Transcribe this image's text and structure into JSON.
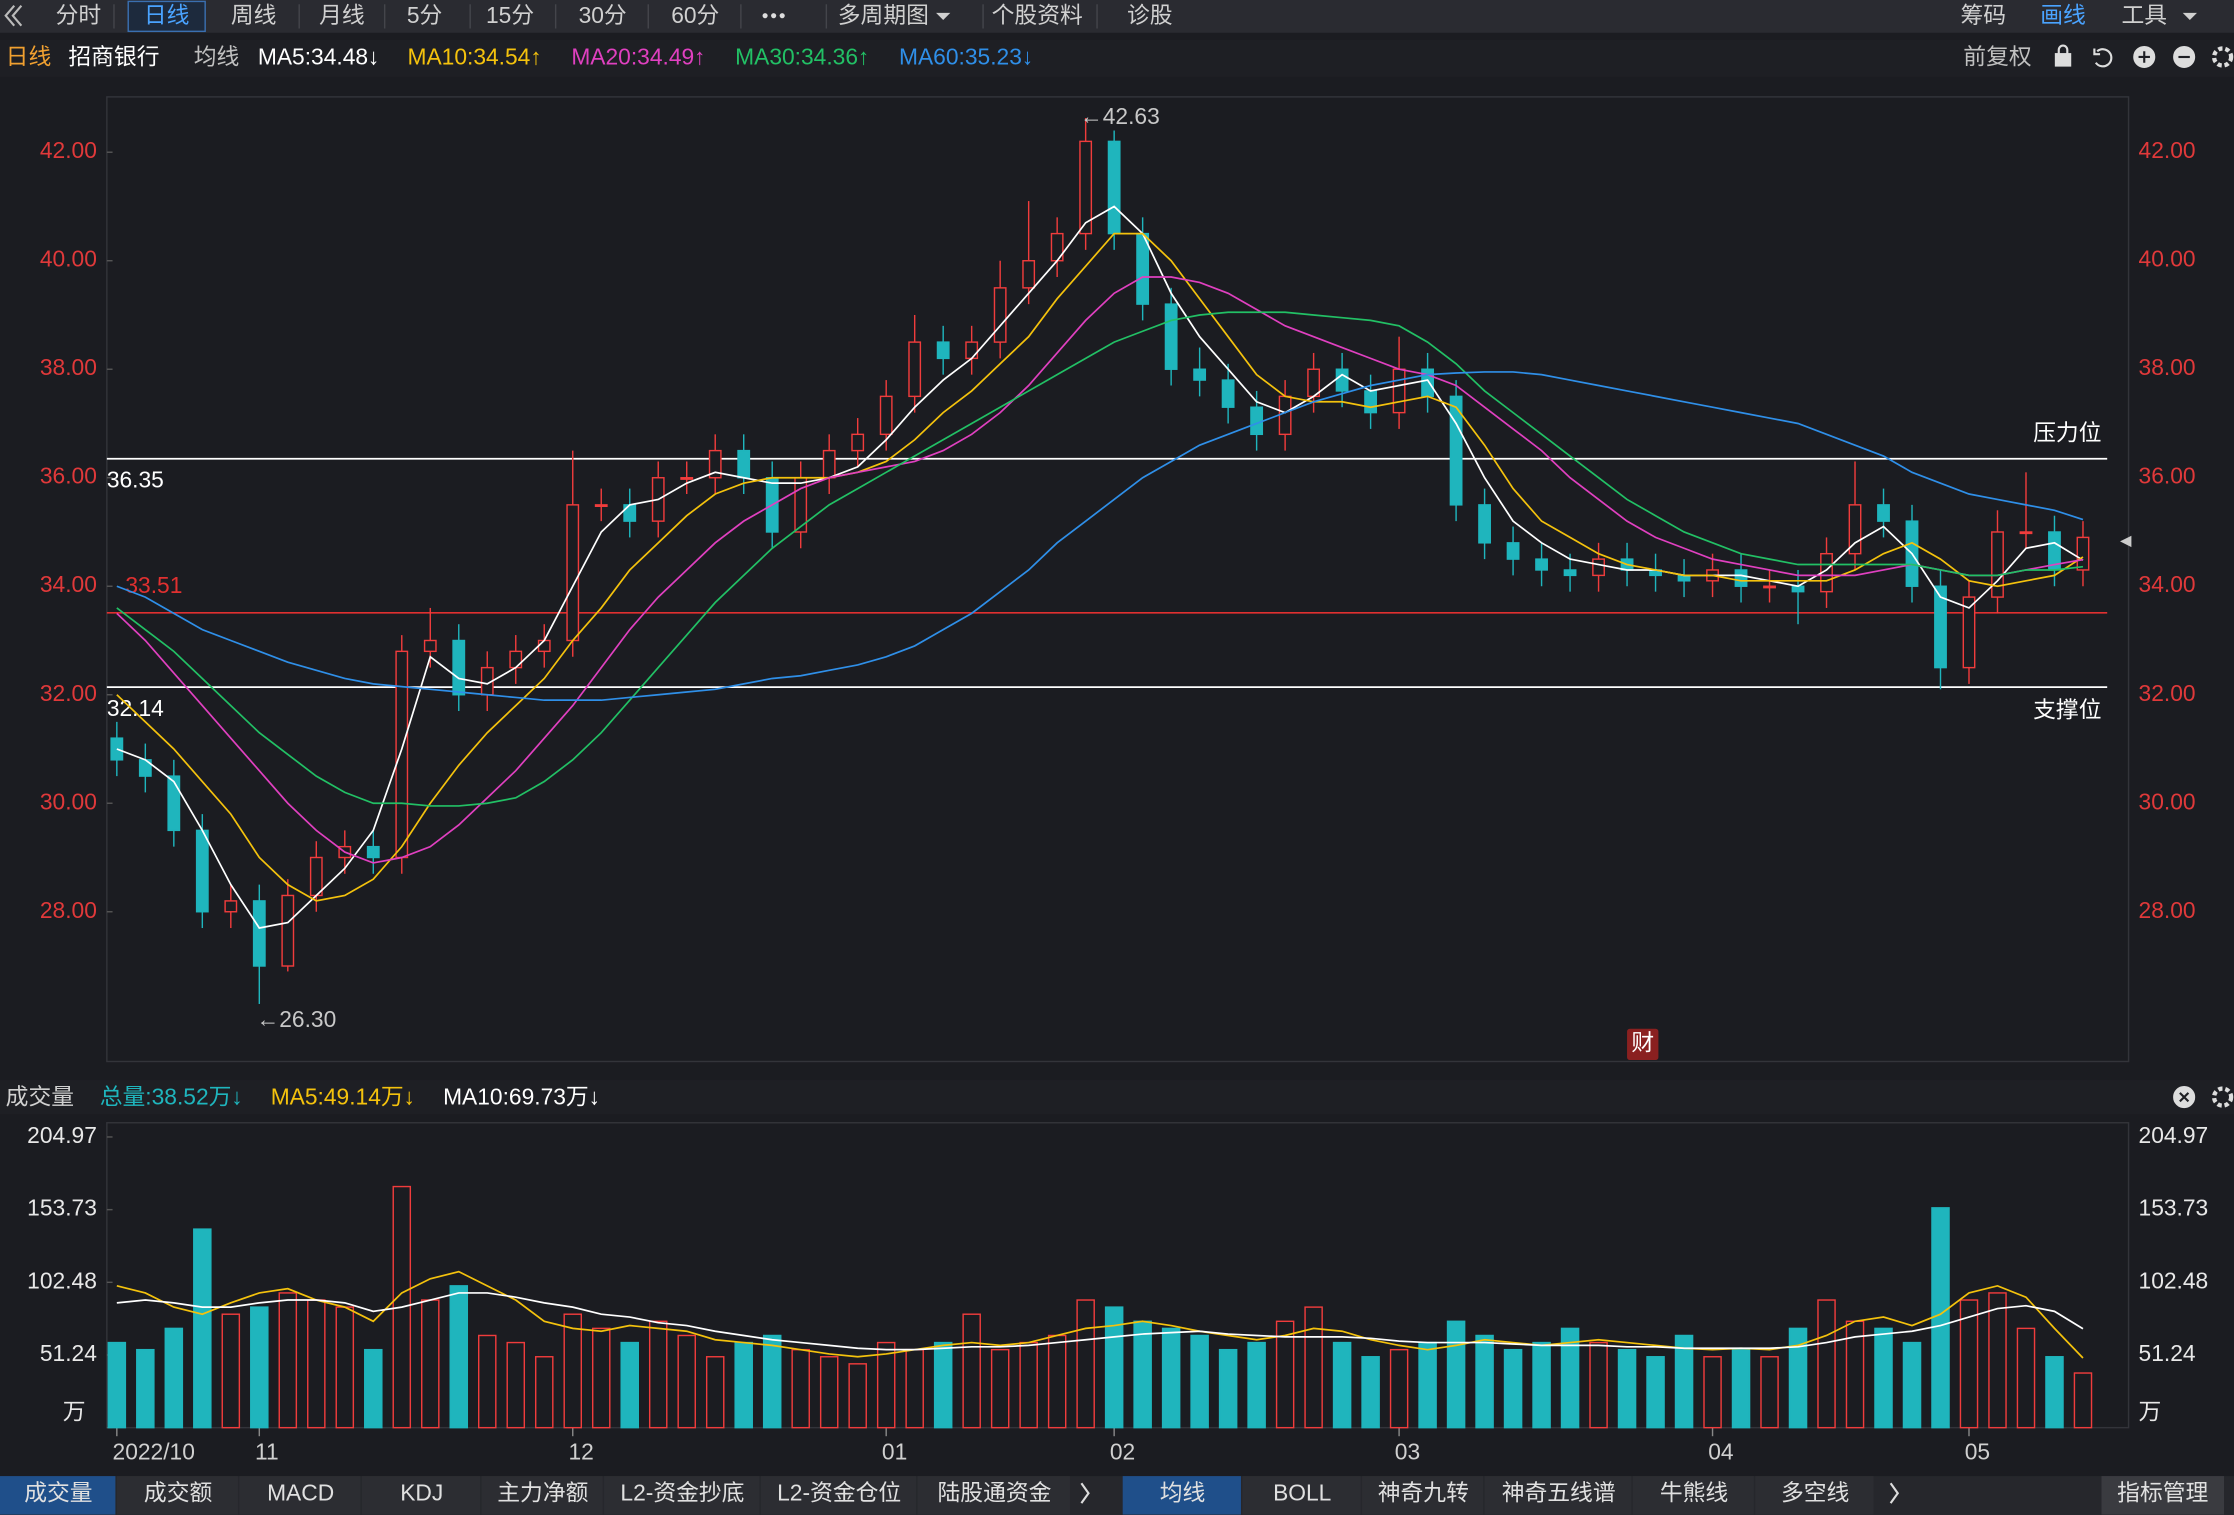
{
  "toolbar": {
    "periods": [
      "分时",
      "日线",
      "周线",
      "月线",
      "5分",
      "15分",
      "30分",
      "60分"
    ],
    "active": "日线",
    "menus": [
      "多周期图",
      "个股资料",
      "诊股"
    ],
    "right": [
      "筹码",
      "画线",
      "工具"
    ],
    "right_active": "画线"
  },
  "chart_data": [
    {
      "type": "candlestick",
      "period_label": "日线",
      "title": "招商银行",
      "ma_label": "均线",
      "adjust_label": "前复权",
      "categories": [
        "2022/10",
        null,
        null,
        null,
        null,
        "11",
        null,
        null,
        null,
        null,
        null,
        null,
        null,
        null,
        null,
        null,
        "12",
        null,
        null,
        null,
        null,
        null,
        null,
        null,
        null,
        null,
        null,
        "01",
        null,
        null,
        null,
        null,
        null,
        null,
        null,
        "02",
        null,
        null,
        null,
        null,
        null,
        null,
        null,
        null,
        null,
        "03",
        null,
        null,
        null,
        null,
        null,
        null,
        null,
        null,
        null,
        null,
        "04",
        null,
        null,
        null,
        null,
        null,
        null,
        null,
        null,
        "05",
        null,
        null,
        null,
        null
      ],
      "open": [
        31.2,
        30.8,
        30.5,
        29.5,
        28.0,
        28.2,
        27.0,
        28.3,
        29.0,
        29.2,
        29.0,
        32.8,
        33.0,
        32.0,
        32.5,
        32.8,
        33.0,
        35.5,
        35.5,
        35.2,
        36.0,
        36.0,
        36.5,
        36.0,
        35.0,
        36.0,
        36.5,
        36.8,
        37.5,
        38.5,
        38.2,
        38.5,
        39.5,
        40.0,
        40.5,
        42.2,
        40.5,
        39.2,
        38.0,
        37.8,
        37.3,
        36.8,
        37.5,
        38.0,
        37.6,
        37.2,
        38.0,
        37.5,
        35.5,
        34.8,
        34.5,
        34.3,
        34.2,
        34.5,
        34.3,
        34.2,
        34.1,
        34.3,
        34.0,
        34.0,
        33.9,
        34.6,
        35.5,
        35.2,
        34.0,
        32.5,
        33.8,
        35.0,
        35.0,
        34.3
      ],
      "high": [
        31.5,
        31.1,
        30.8,
        29.8,
        28.5,
        28.5,
        28.6,
        29.3,
        29.5,
        29.5,
        33.1,
        33.6,
        33.3,
        32.8,
        33.1,
        33.3,
        36.5,
        35.8,
        35.8,
        36.3,
        36.3,
        36.8,
        36.8,
        36.3,
        36.3,
        36.8,
        37.1,
        37.8,
        39.0,
        38.8,
        38.8,
        40.0,
        41.1,
        40.8,
        42.63,
        42.4,
        40.8,
        39.5,
        38.4,
        38.1,
        37.6,
        37.8,
        38.3,
        38.3,
        37.9,
        38.6,
        38.3,
        37.8,
        35.8,
        35.1,
        34.8,
        34.6,
        34.8,
        34.8,
        34.6,
        34.5,
        34.6,
        34.6,
        34.3,
        34.3,
        34.9,
        36.3,
        35.8,
        35.5,
        34.3,
        34.1,
        35.4,
        36.1,
        35.3,
        35.2
      ],
      "low": [
        30.5,
        30.2,
        29.2,
        27.7,
        27.7,
        26.3,
        26.9,
        28.0,
        28.7,
        28.7,
        28.7,
        32.5,
        31.7,
        31.7,
        32.2,
        32.5,
        32.7,
        35.2,
        34.9,
        34.9,
        35.7,
        35.7,
        35.7,
        34.7,
        34.7,
        35.7,
        36.2,
        36.5,
        37.2,
        37.9,
        37.9,
        38.2,
        39.2,
        39.7,
        40.2,
        40.2,
        38.9,
        37.7,
        37.5,
        37.0,
        36.5,
        36.5,
        37.2,
        37.3,
        36.9,
        36.9,
        37.2,
        35.2,
        34.5,
        34.2,
        34.0,
        33.9,
        33.9,
        34.0,
        33.9,
        33.8,
        33.8,
        33.7,
        33.7,
        33.3,
        33.6,
        34.3,
        34.9,
        33.7,
        32.1,
        32.2,
        33.5,
        34.7,
        34.0,
        34.0
      ],
      "close": [
        30.8,
        30.5,
        29.5,
        28.0,
        28.2,
        27.0,
        28.3,
        29.0,
        29.2,
        29.0,
        32.8,
        33.0,
        32.0,
        32.5,
        32.8,
        33.0,
        35.5,
        35.5,
        35.2,
        36.0,
        36.0,
        36.5,
        36.0,
        35.0,
        36.0,
        36.5,
        36.8,
        37.5,
        38.5,
        38.2,
        38.5,
        39.5,
        40.0,
        40.5,
        42.2,
        40.5,
        39.2,
        38.0,
        37.8,
        37.3,
        36.8,
        37.5,
        38.0,
        37.6,
        37.2,
        38.0,
        37.5,
        35.5,
        34.8,
        34.5,
        34.3,
        34.2,
        34.5,
        34.3,
        34.2,
        34.1,
        34.3,
        34.0,
        34.0,
        33.9,
        34.6,
        35.5,
        35.2,
        34.0,
        32.5,
        33.8,
        35.0,
        35.0,
        34.3,
        34.9
      ],
      "up_color": "#f03c3c",
      "down_color": "#1fb5bd",
      "high_note": "←42.63",
      "low_note": "←26.30",
      "badge": "财",
      "ylim": [
        25.24,
        43.02
      ],
      "yticks": [
        {
          "value": 28,
          "label": "28.00"
        },
        {
          "value": 30,
          "label": "30.00"
        },
        {
          "value": 32,
          "label": "32.00"
        },
        {
          "value": 34,
          "label": "34.00"
        },
        {
          "value": 36,
          "label": "36.00"
        },
        {
          "value": 38,
          "label": "38.00"
        },
        {
          "value": 40,
          "label": "40.00"
        },
        {
          "value": 42,
          "label": "42.00"
        }
      ],
      "grid": false,
      "hlines": [
        {
          "value": 36.35,
          "label": "36.35",
          "color": "#ffffff",
          "note": "压力位"
        },
        {
          "value": 33.51,
          "label": "33.51",
          "color": "#e03030"
        },
        {
          "value": 32.14,
          "label": "32.14",
          "color": "#ffffff",
          "note": "支撑位"
        }
      ],
      "series": [
        {
          "name": "MA5",
          "label": "MA5:34.48↓",
          "color": "#ffffff",
          "values": [
            31.0,
            30.8,
            30.4,
            29.5,
            28.5,
            27.7,
            27.8,
            28.3,
            28.8,
            29.5,
            31.0,
            32.7,
            32.3,
            32.2,
            32.5,
            33.0,
            34.0,
            35.0,
            35.5,
            35.6,
            35.9,
            36.1,
            36.0,
            35.9,
            35.9,
            36.0,
            36.2,
            36.7,
            37.3,
            37.8,
            38.2,
            38.8,
            39.4,
            40.0,
            40.7,
            41.0,
            40.5,
            39.4,
            38.6,
            38.0,
            37.4,
            37.2,
            37.5,
            37.9,
            37.6,
            37.7,
            37.8,
            37.0,
            36.0,
            35.2,
            34.8,
            34.5,
            34.4,
            34.3,
            34.3,
            34.2,
            34.2,
            34.2,
            34.1,
            34.0,
            34.3,
            34.8,
            35.1,
            34.6,
            33.8,
            33.6,
            34.1,
            34.7,
            34.8,
            34.48
          ]
        },
        {
          "name": "MA10",
          "label": "MA10:34.54↑",
          "color": "#f4c20d",
          "values": [
            32.0,
            31.5,
            31.0,
            30.4,
            29.8,
            29.0,
            28.5,
            28.2,
            28.3,
            28.6,
            29.2,
            30.0,
            30.7,
            31.3,
            31.8,
            32.3,
            33.0,
            33.6,
            34.3,
            34.8,
            35.3,
            35.7,
            35.9,
            36.0,
            36.0,
            36.0,
            36.1,
            36.3,
            36.7,
            37.2,
            37.6,
            38.1,
            38.6,
            39.3,
            39.9,
            40.5,
            40.5,
            40.0,
            39.3,
            38.6,
            37.9,
            37.5,
            37.4,
            37.4,
            37.3,
            37.4,
            37.5,
            37.3,
            36.6,
            35.8,
            35.2,
            34.9,
            34.6,
            34.4,
            34.3,
            34.2,
            34.2,
            34.1,
            34.1,
            34.1,
            34.1,
            34.3,
            34.6,
            34.8,
            34.5,
            34.1,
            34.0,
            34.1,
            34.2,
            34.54
          ]
        },
        {
          "name": "MA20",
          "label": "MA20:34.49↑",
          "color": "#e040c0",
          "values": [
            33.5,
            33.0,
            32.4,
            31.8,
            31.2,
            30.6,
            30.0,
            29.5,
            29.1,
            28.9,
            29.0,
            29.2,
            29.6,
            30.1,
            30.6,
            31.2,
            31.8,
            32.5,
            33.2,
            33.8,
            34.3,
            34.8,
            35.2,
            35.5,
            35.8,
            36.0,
            36.1,
            36.2,
            36.3,
            36.5,
            36.8,
            37.2,
            37.7,
            38.3,
            38.9,
            39.4,
            39.7,
            39.7,
            39.6,
            39.4,
            39.1,
            38.8,
            38.6,
            38.4,
            38.2,
            38.0,
            37.9,
            37.7,
            37.3,
            36.9,
            36.5,
            36.0,
            35.6,
            35.2,
            34.9,
            34.7,
            34.5,
            34.4,
            34.3,
            34.2,
            34.2,
            34.2,
            34.3,
            34.4,
            34.3,
            34.2,
            34.2,
            34.3,
            34.4,
            34.49
          ]
        },
        {
          "name": "MA30",
          "label": "MA30:34.36↑",
          "color": "#22c065",
          "values": [
            33.6,
            33.2,
            32.8,
            32.3,
            31.8,
            31.3,
            30.9,
            30.5,
            30.2,
            30.0,
            30.0,
            29.95,
            29.95,
            30.0,
            30.1,
            30.4,
            30.8,
            31.3,
            31.9,
            32.5,
            33.1,
            33.7,
            34.2,
            34.7,
            35.1,
            35.5,
            35.8,
            36.1,
            36.4,
            36.7,
            37.0,
            37.3,
            37.6,
            37.9,
            38.2,
            38.5,
            38.7,
            38.9,
            39.0,
            39.05,
            39.05,
            39.05,
            39.0,
            38.95,
            38.9,
            38.8,
            38.5,
            38.1,
            37.6,
            37.2,
            36.8,
            36.4,
            36.0,
            35.6,
            35.3,
            35.0,
            34.8,
            34.6,
            34.5,
            34.4,
            34.4,
            34.4,
            34.4,
            34.4,
            34.3,
            34.2,
            34.2,
            34.3,
            34.3,
            34.36
          ]
        },
        {
          "name": "MA60",
          "label": "MA60:35.23↓",
          "color": "#2f8fe8",
          "values": [
            34.0,
            33.8,
            33.5,
            33.2,
            33.0,
            32.8,
            32.6,
            32.45,
            32.3,
            32.2,
            32.15,
            32.1,
            32.05,
            32.0,
            31.95,
            31.9,
            31.9,
            31.9,
            31.95,
            32.0,
            32.05,
            32.1,
            32.2,
            32.3,
            32.35,
            32.45,
            32.55,
            32.7,
            32.9,
            33.2,
            33.5,
            33.9,
            34.3,
            34.8,
            35.2,
            35.6,
            36.0,
            36.3,
            36.6,
            36.8,
            37.0,
            37.2,
            37.4,
            37.55,
            37.7,
            37.8,
            37.9,
            37.93,
            37.95,
            37.95,
            37.9,
            37.8,
            37.7,
            37.6,
            37.5,
            37.4,
            37.3,
            37.2,
            37.1,
            37.0,
            36.8,
            36.6,
            36.4,
            36.1,
            35.9,
            35.7,
            35.6,
            35.5,
            35.4,
            35.23
          ]
        }
      ]
    },
    {
      "type": "bar",
      "title": "成交量",
      "total_label": "总量:38.52万↓",
      "values": [
        60,
        55,
        70,
        140,
        80,
        85,
        95,
        90,
        85,
        55,
        170,
        90,
        100,
        65,
        60,
        50,
        80,
        70,
        60,
        75,
        65,
        50,
        60,
        65,
        55,
        50,
        45,
        60,
        55,
        60,
        80,
        55,
        60,
        65,
        90,
        85,
        75,
        70,
        65,
        55,
        60,
        75,
        85,
        60,
        50,
        55,
        60,
        75,
        65,
        55,
        60,
        70,
        60,
        55,
        50,
        65,
        50,
        55,
        50,
        70,
        90,
        75,
        70,
        60,
        155,
        90,
        95,
        70,
        50,
        38.52
      ],
      "ylim": [
        0,
        215
      ],
      "yticks": [
        {
          "value": 0,
          "label": "万"
        },
        51.24,
        102.48,
        153.73,
        204.97
      ],
      "series": [
        {
          "name": "MA5",
          "label": "MA5:49.14万↓",
          "color": "#f4c20d",
          "values": [
            100,
            95,
            85,
            80,
            88,
            95,
            98,
            90,
            85,
            75,
            95,
            105,
            110,
            100,
            90,
            75,
            70,
            68,
            72,
            70,
            68,
            62,
            60,
            58,
            55,
            52,
            50,
            52,
            55,
            58,
            60,
            58,
            60,
            65,
            70,
            72,
            75,
            72,
            68,
            65,
            62,
            65,
            70,
            68,
            62,
            58,
            55,
            58,
            62,
            60,
            58,
            60,
            62,
            60,
            58,
            56,
            55,
            56,
            55,
            58,
            65,
            75,
            78,
            72,
            80,
            95,
            100,
            92,
            70,
            49.14
          ]
        },
        {
          "name": "MA10",
          "label": "MA10:69.73万↓",
          "color": "#ffffff",
          "values": [
            88,
            90,
            88,
            85,
            85,
            88,
            90,
            90,
            88,
            82,
            85,
            90,
            95,
            95,
            92,
            88,
            85,
            80,
            78,
            74,
            72,
            68,
            65,
            62,
            60,
            58,
            56,
            55,
            55,
            56,
            57,
            57,
            58,
            60,
            62,
            64,
            66,
            67,
            68,
            66,
            65,
            64,
            64,
            64,
            63,
            61,
            60,
            60,
            60,
            59,
            58,
            58,
            58,
            57,
            57,
            56,
            56,
            56,
            56,
            57,
            60,
            64,
            66,
            68,
            72,
            78,
            84,
            86,
            82,
            69.73
          ]
        }
      ]
    }
  ],
  "indicator_tabs": [
    "成交量",
    "成交额",
    "MACD",
    "KDJ",
    "主力净额",
    "L2-资金抄底",
    "L2-资金仓位",
    "陆股通资金"
  ],
  "overlay_tabs": [
    "均线",
    "BOLL",
    "神奇九转",
    "神奇五线谱",
    "牛熊线",
    "多空线"
  ],
  "manage_label": "指标管理"
}
